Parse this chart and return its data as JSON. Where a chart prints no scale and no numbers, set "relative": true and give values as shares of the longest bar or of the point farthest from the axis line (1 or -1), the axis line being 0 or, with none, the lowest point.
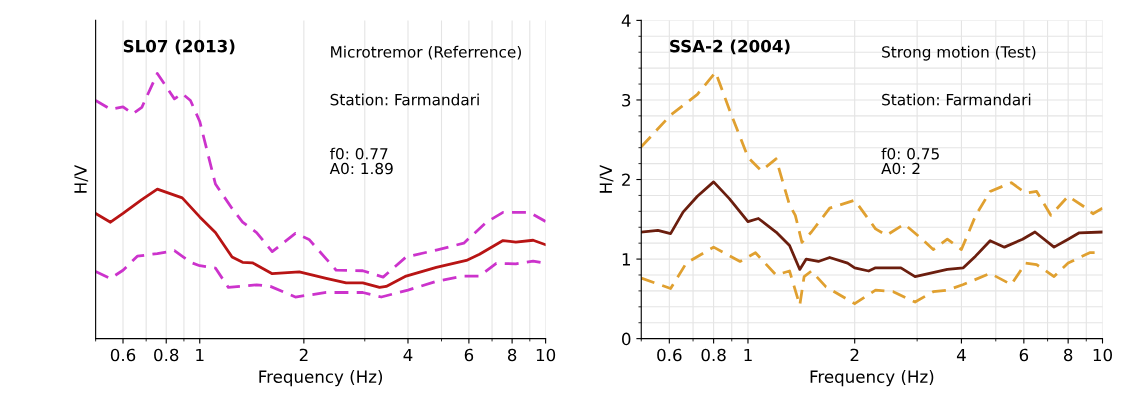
{
  "chart_data": [
    {
      "type": "line",
      "title": "SL07 (2013)",
      "xlabel": "Frequency (Hz)",
      "ylabel": "H/V",
      "relative": true,
      "log": "x",
      "xlim": [
        0.5,
        10
      ],
      "xticks": [
        0.6,
        0.8,
        1,
        2,
        4,
        6,
        8,
        10
      ],
      "grid": "x",
      "legend": false,
      "annotations": [
        "Microtremor (Referrence)",
        "Station: Farmandari",
        "f0: 0.77\nA0: 1.89"
      ],
      "series": [
        {
          "color": "#b81414",
          "line_style": "solid",
          "x": [
            0.5,
            0.552,
            0.6,
            0.68,
            0.754,
            0.89,
            1.0,
            1.11,
            1.24,
            1.33,
            1.42,
            1.62,
            1.94,
            2.32,
            2.65,
            2.96,
            3.31,
            3.46,
            3.95,
            4.83,
            5.9,
            6.44,
            7.53,
            8.2,
            9.2,
            10
          ],
          "values": [
            0.472,
            0.439,
            0.472,
            0.524,
            0.564,
            0.531,
            0.459,
            0.4,
            0.308,
            0.288,
            0.286,
            0.245,
            0.252,
            0.227,
            0.21,
            0.21,
            0.193,
            0.197,
            0.236,
            0.269,
            0.295,
            0.318,
            0.37,
            0.364,
            0.371,
            0.354
          ]
        },
        {
          "color": "#cc33cc",
          "line_style": "dashed",
          "x": [
            0.5,
            0.552,
            0.6,
            0.64,
            0.68,
            0.754,
            0.845,
            0.89,
            0.94,
            1.0,
            1.11,
            1.24,
            1.33,
            1.46,
            1.62,
            1.89,
            2.07,
            2.48,
            2.96,
            3.39,
            3.95,
            4.83,
            5.8,
            6.74,
            7.53,
            8.98,
            10
          ],
          "values": [
            0.898,
            0.865,
            0.874,
            0.848,
            0.872,
            1,
            0.904,
            0.924,
            0.898,
            0.819,
            0.583,
            0.491,
            0.439,
            0.4,
            0.328,
            0.397,
            0.374,
            0.258,
            0.256,
            0.232,
            0.308,
            0.334,
            0.36,
            0.439,
            0.476,
            0.476,
            0.442
          ]
        },
        {
          "color": "#cc33cc",
          "line_style": "dashed",
          "x": [
            0.5,
            0.552,
            0.6,
            0.66,
            0.754,
            0.845,
            0.94,
            1.0,
            1.11,
            1.21,
            1.46,
            1.6,
            1.89,
            2.32,
            2.96,
            3.35,
            4.0,
            4.83,
            5.8,
            6.44,
            7.2,
            8.2,
            9.2,
            10
          ],
          "values": [
            0.253,
            0.227,
            0.258,
            0.311,
            0.321,
            0.332,
            0.288,
            0.275,
            0.266,
            0.193,
            0.203,
            0.197,
            0.157,
            0.174,
            0.174,
            0.157,
            0.183,
            0.216,
            0.236,
            0.236,
            0.284,
            0.282,
            0.292,
            0.284
          ]
        }
      ]
    },
    {
      "type": "line",
      "title": "SSA-2 (2004)",
      "xlabel": "Frequency (Hz)",
      "ylabel": "H/V",
      "log": "x",
      "xlim": [
        0.5,
        10
      ],
      "xticks": [
        0.6,
        0.8,
        1,
        2,
        4,
        6,
        8,
        10
      ],
      "ylim": [
        0,
        4
      ],
      "yticks": [
        0,
        1,
        2,
        3,
        4
      ],
      "grid": true,
      "legend": false,
      "annotations": [
        "Strong motion (Test)",
        "Station: Farmandari",
        "f0: 0.75\nA0: 2"
      ],
      "series": [
        {
          "color": "#6b1e0e",
          "line_style": "solid",
          "x": [
            0.5,
            0.557,
            0.605,
            0.656,
            0.72,
            0.8,
            0.886,
            1.0,
            1.07,
            1.2,
            1.31,
            1.4,
            1.46,
            1.58,
            1.7,
            1.91,
            2.0,
            2.19,
            2.29,
            2.7,
            2.96,
            3.65,
            4.05,
            4.39,
            4.82,
            5.29,
            5.95,
            6.45,
            7.3,
            8.0,
            8.6,
            10
          ],
          "values": [
            1.34,
            1.36,
            1.32,
            1.59,
            1.79,
            1.97,
            1.76,
            1.47,
            1.51,
            1.34,
            1.17,
            0.87,
            1.0,
            0.97,
            1.02,
            0.95,
            0.89,
            0.85,
            0.89,
            0.89,
            0.78,
            0.87,
            0.89,
            1.04,
            1.23,
            1.15,
            1.25,
            1.34,
            1.15,
            1.25,
            1.33,
            1.34
          ]
        },
        {
          "color": "#e0a030",
          "line_style": "dashed",
          "x": [
            0.5,
            0.605,
            0.72,
            0.81,
            0.886,
            1.0,
            1.09,
            1.2,
            1.31,
            1.36,
            1.42,
            1.51,
            1.7,
            2.0,
            2.29,
            2.46,
            2.76,
            3.1,
            3.33,
            3.65,
            4.0,
            4.39,
            4.82,
            5.53,
            6.07,
            6.52,
            7.15,
            8.0,
            9.0,
            9.4,
            10
          ],
          "values": [
            2.41,
            2.81,
            3.07,
            3.35,
            2.88,
            2.28,
            2.11,
            2.26,
            1.68,
            1.55,
            1.21,
            1.34,
            1.64,
            1.74,
            1.38,
            1.3,
            1.44,
            1.25,
            1.12,
            1.25,
            1.12,
            1.55,
            1.85,
            1.96,
            1.83,
            1.85,
            1.55,
            1.79,
            1.64,
            1.57,
            1.64
          ]
        },
        {
          "color": "#e0a030",
          "line_style": "dashed",
          "x": [
            0.5,
            0.605,
            0.67,
            0.8,
            0.95,
            1.05,
            1.2,
            1.31,
            1.4,
            1.44,
            1.51,
            1.66,
            2.0,
            2.29,
            2.57,
            2.96,
            3.33,
            3.65,
            4.05,
            4.82,
            5.53,
            6.07,
            6.52,
            7.3,
            8.0,
            9.2,
            10
          ],
          "values": [
            0.76,
            0.63,
            0.95,
            1.15,
            0.97,
            1.08,
            0.8,
            0.85,
            0.42,
            0.78,
            0.85,
            0.65,
            0.44,
            0.61,
            0.59,
            0.46,
            0.59,
            0.61,
            0.68,
            0.82,
            0.68,
            0.95,
            0.93,
            0.78,
            0.95,
            1.08,
            1.08
          ]
        }
      ]
    }
  ]
}
